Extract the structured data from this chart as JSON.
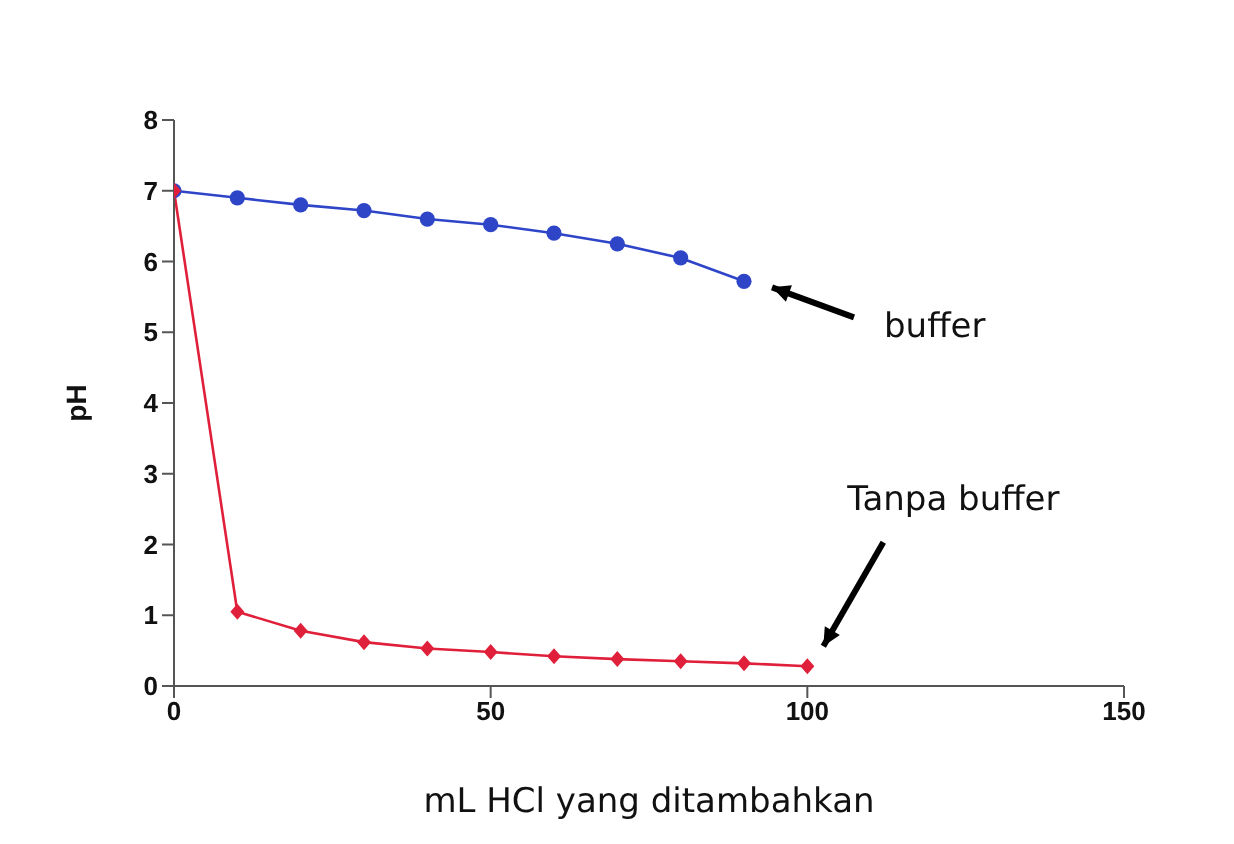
{
  "chart_data": {
    "type": "line",
    "xlabel": "mL HCl yang ditambahkan",
    "ylabel": "pH",
    "xlim": [
      0,
      150
    ],
    "xticks": [
      0,
      50,
      100,
      150
    ],
    "ylim": [
      0,
      8
    ],
    "yticks": [
      0,
      1,
      2,
      3,
      4,
      5,
      6,
      7,
      8
    ],
    "grid": false,
    "legend": false,
    "series": [
      {
        "name": "buffer",
        "color": "#2f45c8",
        "marker": "circle",
        "x": [
          0,
          10,
          20,
          30,
          40,
          50,
          60,
          70,
          80,
          90
        ],
        "values": [
          7.0,
          6.9,
          6.8,
          6.72,
          6.6,
          6.52,
          6.4,
          6.25,
          6.05,
          5.72
        ]
      },
      {
        "name": "Tanpa buffer",
        "color": "#e0203a",
        "marker": "diamond",
        "x": [
          0,
          10,
          20,
          30,
          40,
          50,
          60,
          70,
          80,
          90,
          100
        ],
        "values": [
          7.0,
          1.05,
          0.78,
          0.62,
          0.53,
          0.48,
          0.42,
          0.38,
          0.35,
          0.32,
          0.28
        ]
      }
    ]
  }
}
